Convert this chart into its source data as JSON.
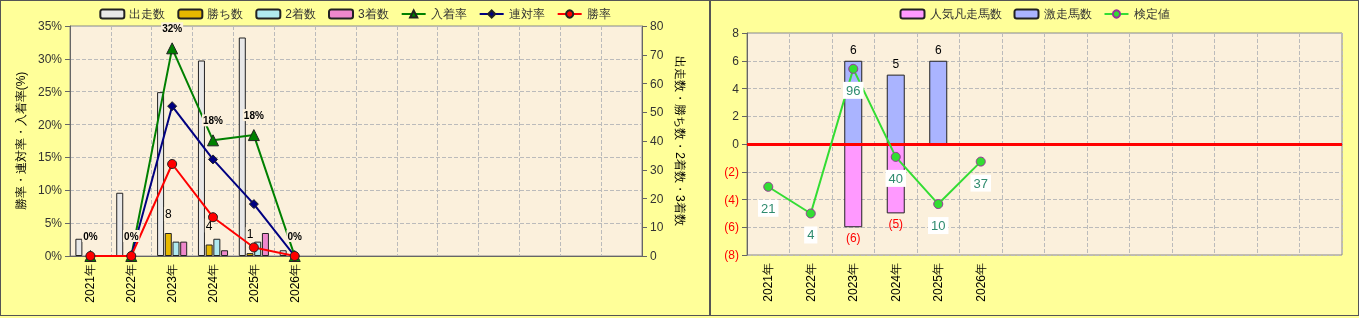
{
  "chart_data": [
    {
      "type": "bar",
      "categories": [
        "2021年",
        "2022年",
        "2023年",
        "2024年",
        "2025年",
        "2026年",
        null,
        null,
        null,
        null,
        null,
        null,
        null,
        null
      ],
      "ylabel": "勝率・連対率・入着率(%)",
      "y2label": "出走数・勝ち数・2着数・3着数",
      "ylim": [
        0,
        35
      ],
      "yticks": [
        {
          "value": 0,
          "label": "0%"
        },
        {
          "value": 5,
          "label": "5%"
        },
        {
          "value": 10,
          "label": "10%"
        },
        {
          "value": 15,
          "label": "15%"
        },
        {
          "value": 20,
          "label": "20%"
        },
        {
          "value": 25,
          "label": "25%"
        },
        {
          "value": 30,
          "label": "30%"
        },
        {
          "value": 35,
          "label": "35%"
        }
      ],
      "y2lim": [
        0,
        80
      ],
      "y2ticks": [
        0,
        10,
        20,
        30,
        40,
        50,
        60,
        70,
        80
      ],
      "grid": true,
      "legend": "top",
      "series": [
        {
          "name": "出走数",
          "axis": "y2",
          "color": "#e8e8e8",
          "values": [
            6,
            22,
            57,
            68,
            76,
            2,
            null,
            null,
            null,
            null,
            null,
            null,
            null,
            null
          ]
        },
        {
          "name": "勝ち数",
          "axis": "y2",
          "color": "#e6b800",
          "values": [
            0,
            0,
            8,
            4,
            1,
            0,
            null,
            null,
            null,
            null,
            null,
            null,
            null,
            null
          ],
          "value_labels": [
            null,
            null,
            "8",
            "4",
            "1",
            null,
            null,
            null,
            null,
            null,
            null,
            null,
            null,
            null
          ]
        },
        {
          "name": "2着数",
          "axis": "y2",
          "color": "#b0eaf0",
          "values": [
            0,
            0,
            5,
            6,
            5,
            0,
            null,
            null,
            null,
            null,
            null,
            null,
            null,
            null
          ]
        },
        {
          "name": "3着数",
          "axis": "y2",
          "color": "#ee88cc",
          "values": [
            0,
            0,
            5,
            2,
            8,
            0,
            null,
            null,
            null,
            null,
            null,
            null,
            null,
            null
          ]
        },
        {
          "name": "入着率",
          "type": "line",
          "axis": "y",
          "color": "#008000",
          "marker": "triangle",
          "values": [
            0,
            0,
            31.6,
            17.6,
            18.4,
            0,
            null,
            null,
            null,
            null,
            null,
            null,
            null,
            null
          ],
          "value_labels": [
            "0%",
            "0%",
            "32%",
            "18%",
            "18%",
            "0%",
            null,
            null,
            null,
            null,
            null,
            null,
            null,
            null
          ]
        },
        {
          "name": "連対率",
          "type": "line",
          "axis": "y",
          "color": "#000080",
          "marker": "diamond",
          "values": [
            0,
            0,
            22.8,
            14.7,
            7.9,
            0,
            null,
            null,
            null,
            null,
            null,
            null,
            null,
            null
          ]
        },
        {
          "name": "勝率",
          "type": "line",
          "axis": "y",
          "color": "#ff0000",
          "marker": "circle",
          "values": [
            0,
            0,
            14.0,
            5.9,
            1.3,
            0,
            null,
            null,
            null,
            null,
            null,
            null,
            null,
            null
          ]
        }
      ]
    },
    {
      "type": "bar",
      "categories": [
        "2021年",
        "2022年",
        "2023年",
        "2024年",
        "2025年",
        "2026年",
        null,
        null,
        null,
        null,
        null,
        null,
        null,
        null
      ],
      "ylim": [
        -8,
        8
      ],
      "y2lim": [
        -22.4,
        118.8
      ],
      "yticks": [
        {
          "value": -8,
          "label": "(8)"
        },
        {
          "value": -6,
          "label": "(6)"
        },
        {
          "value": -4,
          "label": "(4)"
        },
        {
          "value": -2,
          "label": "(2)"
        },
        0,
        2,
        4,
        6,
        8
      ],
      "grid": true,
      "legend": "top",
      "stacked": true,
      "ref_lines": [
        {
          "axis": "y",
          "value": 0,
          "color": "#ff0000"
        }
      ],
      "series": [
        {
          "name": "人気凡走馬数",
          "color": "#ff99ff",
          "values": [
            0,
            0,
            -6,
            -5,
            0,
            0,
            null,
            null,
            null,
            null,
            null,
            null,
            null,
            null
          ],
          "value_labels": [
            null,
            null,
            "(6)",
            "(5)",
            null,
            null,
            null,
            null,
            null,
            null,
            null,
            null,
            null,
            null
          ]
        },
        {
          "name": "激走馬数",
          "color": "#aab4ff",
          "values": [
            0,
            0,
            6,
            5,
            6,
            0,
            null,
            null,
            null,
            null,
            null,
            null,
            null,
            null
          ],
          "value_labels": [
            null,
            null,
            "6",
            "5",
            "6",
            null,
            null,
            null,
            null,
            null,
            null,
            null,
            null,
            null
          ]
        },
        {
          "name": "検定値",
          "type": "line",
          "axis": "y2",
          "color": "#33dd33",
          "marker": "circle",
          "values": [
            21,
            4,
            96,
            40,
            10,
            37,
            null,
            null,
            null,
            null,
            null,
            null,
            null,
            null
          ],
          "data_labels": true
        }
      ]
    }
  ]
}
